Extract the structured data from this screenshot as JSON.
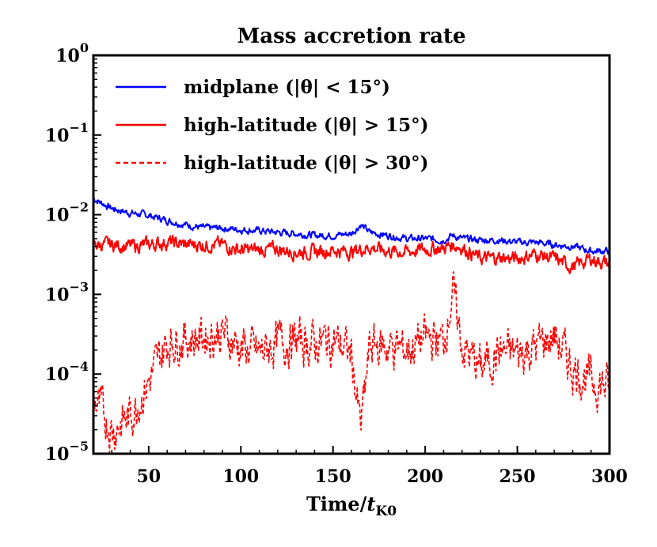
{
  "chart_data": {
    "type": "line",
    "title": "Mass accretion rate",
    "xlabel": "Time/",
    "xlabel_symbol": "t",
    "xlabel_subscript": "K0",
    "ylabel": "",
    "xlim": [
      20,
      300
    ],
    "ylim": [
      1e-05,
      1
    ],
    "yscale": "log",
    "x_ticks": [
      "50",
      "100",
      "150",
      "200",
      "250",
      "300"
    ],
    "y_ticks": [
      {
        "base": "10",
        "exp": "0"
      },
      {
        "base": "10",
        "exp": "−1"
      },
      {
        "base": "10",
        "exp": "−2"
      },
      {
        "base": "10",
        "exp": "−3"
      },
      {
        "base": "10",
        "exp": "−4"
      },
      {
        "base": "10",
        "exp": "−5"
      }
    ],
    "legend_position": "upper-left",
    "x": [
      20,
      30,
      40,
      50,
      60,
      70,
      80,
      90,
      100,
      110,
      120,
      130,
      140,
      150,
      160,
      165,
      170,
      180,
      190,
      200,
      210,
      215,
      220,
      230,
      240,
      250,
      260,
      270,
      280,
      290,
      300
    ],
    "series": [
      {
        "name": "midplane",
        "legend_label": "midplane (|θ| < 15°)",
        "color": "#0000ff",
        "dash": "solid",
        "values": [
          0.016,
          0.012,
          0.0105,
          0.0098,
          0.0085,
          0.0075,
          0.0068,
          0.0068,
          0.0065,
          0.0063,
          0.006,
          0.0058,
          0.0055,
          0.0055,
          0.0058,
          0.0075,
          0.006,
          0.0055,
          0.005,
          0.005,
          0.0048,
          0.0055,
          0.005,
          0.0048,
          0.0048,
          0.0045,
          0.0045,
          0.0042,
          0.004,
          0.0035,
          0.0035
        ]
      },
      {
        "name": "high-latitude-15",
        "legend_label": "high-latitude (|θ| > 15°)",
        "color": "#ff0000",
        "dash": "solid",
        "values": [
          0.0042,
          0.0042,
          0.004,
          0.0042,
          0.0045,
          0.0042,
          0.0042,
          0.0042,
          0.0036,
          0.0036,
          0.0037,
          0.0034,
          0.0034,
          0.0036,
          0.0034,
          0.0037,
          0.0039,
          0.0035,
          0.0034,
          0.0037,
          0.0038,
          0.0042,
          0.0039,
          0.0028,
          0.0029,
          0.0028,
          0.0032,
          0.0028,
          0.0022,
          0.0028,
          0.0024
        ]
      },
      {
        "name": "high-latitude-30",
        "legend_label": "high-latitude (|θ| > 30°)",
        "color": "#ff0000",
        "dash": "dashed",
        "values": [
          5e-05,
          2e-05,
          3e-05,
          8e-05,
          0.00025,
          0.00028,
          0.0003,
          0.00033,
          0.00022,
          0.00018,
          0.00025,
          0.00026,
          0.00024,
          0.00027,
          0.00018,
          2e-05,
          0.00023,
          0.00022,
          0.0002,
          0.00028,
          0.00026,
          0.0011,
          0.00022,
          0.00012,
          0.00019,
          0.00018,
          0.00022,
          0.0003,
          0.00012,
          8e-05,
          7e-05
        ]
      }
    ]
  }
}
